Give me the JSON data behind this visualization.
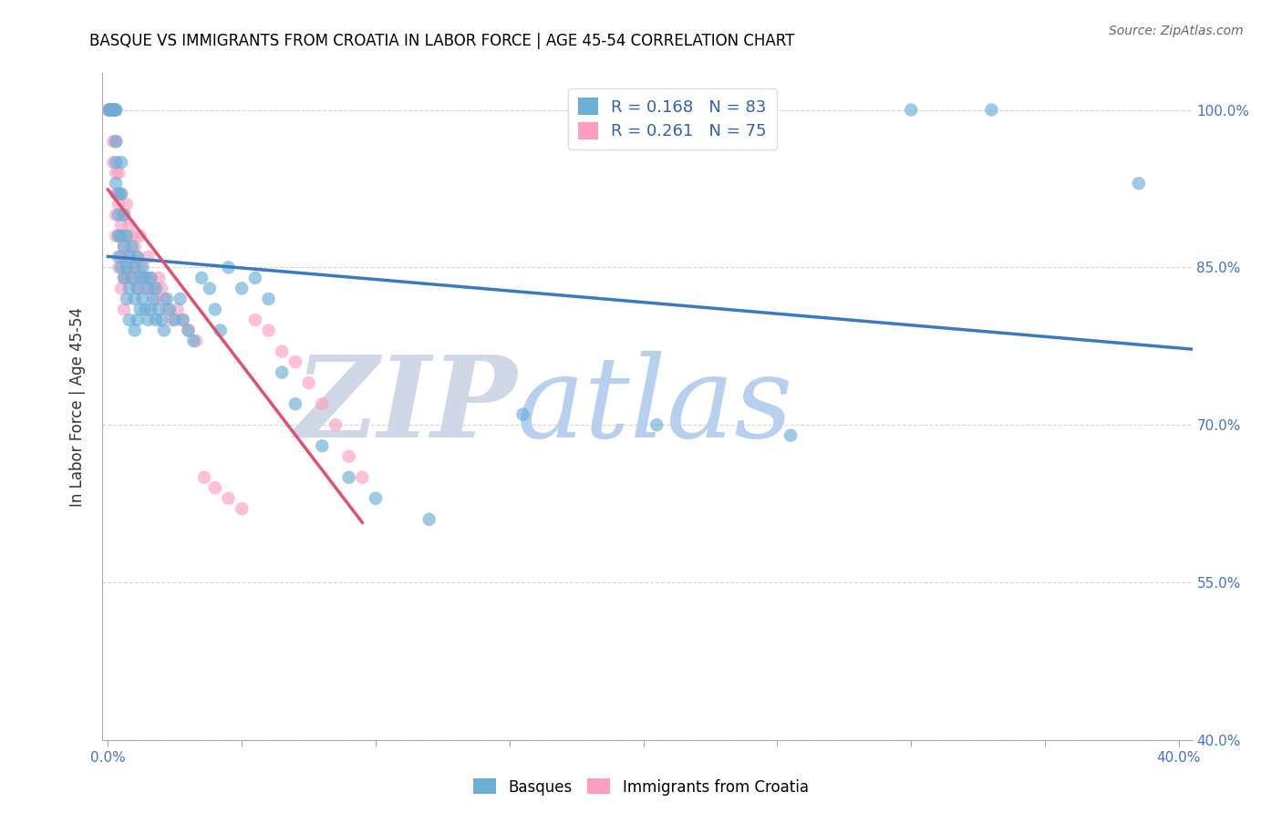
{
  "title": "BASQUE VS IMMIGRANTS FROM CROATIA IN LABOR FORCE | AGE 45-54 CORRELATION CHART",
  "source": "Source: ZipAtlas.com",
  "ylabel": "In Labor Force | Age 45-54",
  "xlim": [
    -0.002,
    0.405
  ],
  "ylim": [
    0.4,
    1.035
  ],
  "x_ticks": [
    0.0,
    0.05,
    0.1,
    0.15,
    0.2,
    0.25,
    0.3,
    0.35,
    0.4
  ],
  "y_ticks": [
    0.4,
    0.55,
    0.7,
    0.85,
    1.0
  ],
  "y_tick_labels": [
    "40.0%",
    "55.0%",
    "70.0%",
    "85.0%",
    "100.0%"
  ],
  "blue_R": 0.168,
  "blue_N": 83,
  "pink_R": 0.261,
  "pink_N": 75,
  "blue_color": "#6baed6",
  "pink_color": "#fc9fbf",
  "blue_line_color": "#3a7abf",
  "pink_line_color": "#e05070",
  "watermark_ZIP": "ZIP",
  "watermark_atlas": "atlas",
  "watermark_ZIP_color": "#d0d8e8",
  "watermark_atlas_color": "#b8d0f0",
  "legend_label_blue": "Basques",
  "legend_label_pink": "Immigrants from Croatia",
  "blue_x": [
    0.0005,
    0.001,
    0.001,
    0.001,
    0.0015,
    0.0015,
    0.002,
    0.002,
    0.002,
    0.002,
    0.003,
    0.003,
    0.003,
    0.003,
    0.003,
    0.004,
    0.004,
    0.004,
    0.004,
    0.005,
    0.005,
    0.005,
    0.005,
    0.006,
    0.006,
    0.006,
    0.007,
    0.007,
    0.007,
    0.008,
    0.008,
    0.008,
    0.009,
    0.009,
    0.01,
    0.01,
    0.01,
    0.011,
    0.011,
    0.011,
    0.012,
    0.012,
    0.013,
    0.013,
    0.014,
    0.014,
    0.015,
    0.015,
    0.016,
    0.016,
    0.017,
    0.018,
    0.018,
    0.019,
    0.02,
    0.021,
    0.022,
    0.023,
    0.025,
    0.027,
    0.028,
    0.03,
    0.032,
    0.035,
    0.038,
    0.04,
    0.042,
    0.045,
    0.05,
    0.055,
    0.06,
    0.065,
    0.07,
    0.08,
    0.09,
    0.1,
    0.12,
    0.155,
    0.205,
    0.255,
    0.3,
    0.33,
    0.385
  ],
  "blue_y": [
    1.0,
    1.0,
    1.0,
    1.0,
    1.0,
    1.0,
    1.0,
    1.0,
    1.0,
    1.0,
    1.0,
    1.0,
    0.97,
    0.95,
    0.93,
    0.92,
    0.9,
    0.88,
    0.86,
    0.95,
    0.92,
    0.88,
    0.85,
    0.9,
    0.87,
    0.84,
    0.88,
    0.85,
    0.82,
    0.86,
    0.83,
    0.8,
    0.87,
    0.84,
    0.85,
    0.82,
    0.79,
    0.86,
    0.83,
    0.8,
    0.84,
    0.81,
    0.85,
    0.82,
    0.84,
    0.81,
    0.83,
    0.8,
    0.84,
    0.81,
    0.82,
    0.83,
    0.8,
    0.81,
    0.8,
    0.79,
    0.82,
    0.81,
    0.8,
    0.82,
    0.8,
    0.79,
    0.78,
    0.84,
    0.83,
    0.81,
    0.79,
    0.85,
    0.83,
    0.84,
    0.82,
    0.75,
    0.72,
    0.68,
    0.65,
    0.63,
    0.61,
    0.71,
    0.7,
    0.69,
    1.0,
    1.0,
    0.93
  ],
  "pink_x": [
    0.0002,
    0.0003,
    0.0005,
    0.0005,
    0.001,
    0.001,
    0.001,
    0.001,
    0.001,
    0.001,
    0.0015,
    0.0015,
    0.002,
    0.002,
    0.002,
    0.002,
    0.002,
    0.003,
    0.003,
    0.003,
    0.003,
    0.003,
    0.004,
    0.004,
    0.004,
    0.004,
    0.005,
    0.005,
    0.005,
    0.005,
    0.006,
    0.006,
    0.006,
    0.006,
    0.007,
    0.007,
    0.007,
    0.008,
    0.008,
    0.009,
    0.009,
    0.01,
    0.01,
    0.011,
    0.011,
    0.012,
    0.012,
    0.013,
    0.014,
    0.015,
    0.016,
    0.017,
    0.018,
    0.019,
    0.02,
    0.021,
    0.022,
    0.024,
    0.026,
    0.028,
    0.03,
    0.033,
    0.036,
    0.04,
    0.045,
    0.05,
    0.055,
    0.06,
    0.065,
    0.07,
    0.075,
    0.08,
    0.085,
    0.09,
    0.095
  ],
  "pink_y": [
    1.0,
    1.0,
    1.0,
    1.0,
    1.0,
    1.0,
    1.0,
    1.0,
    1.0,
    1.0,
    1.0,
    1.0,
    1.0,
    1.0,
    1.0,
    0.97,
    0.95,
    0.97,
    0.94,
    0.92,
    0.9,
    0.88,
    0.94,
    0.91,
    0.88,
    0.85,
    0.92,
    0.89,
    0.86,
    0.83,
    0.9,
    0.87,
    0.84,
    0.81,
    0.91,
    0.88,
    0.84,
    0.89,
    0.86,
    0.88,
    0.85,
    0.87,
    0.84,
    0.86,
    0.83,
    0.88,
    0.85,
    0.84,
    0.83,
    0.86,
    0.84,
    0.83,
    0.82,
    0.84,
    0.83,
    0.82,
    0.81,
    0.8,
    0.81,
    0.8,
    0.79,
    0.78,
    0.65,
    0.64,
    0.63,
    0.62,
    0.8,
    0.79,
    0.77,
    0.76,
    0.74,
    0.72,
    0.7,
    0.67,
    0.65
  ]
}
